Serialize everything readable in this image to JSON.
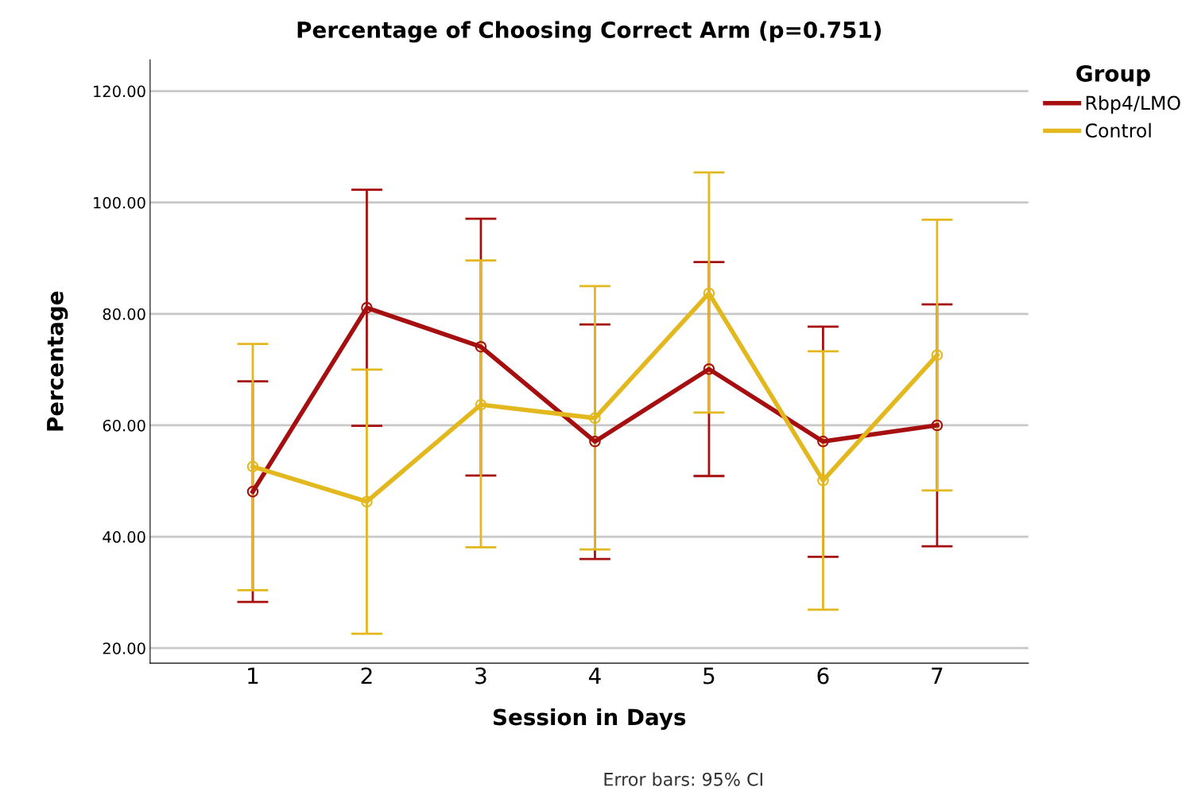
{
  "chart_data": {
    "type": "line",
    "title": "Percentage of Choosing Correct Arm (p=0.751)",
    "xlabel": "Session in Days",
    "ylabel": "Percentage",
    "legend_title": "Group",
    "categories": [
      "1",
      "2",
      "3",
      "4",
      "5",
      "6",
      "7"
    ],
    "series": [
      {
        "name": "Rbp4/LMO",
        "color": "#a50f0f",
        "values": [
          48.1,
          81.1,
          74.1,
          57.1,
          70.1,
          57.1,
          60.0
        ],
        "errors": [
          [
            28.3,
            67.9
          ],
          [
            59.9,
            102.3
          ],
          [
            51.0,
            97.1
          ],
          [
            36.0,
            78.1
          ],
          [
            50.9,
            89.3
          ],
          [
            36.4,
            77.7
          ],
          [
            38.3,
            81.7
          ]
        ]
      },
      {
        "name": "Control",
        "color": "#e3b81e",
        "values": [
          52.6,
          46.3,
          63.7,
          61.3,
          83.7,
          50.1,
          72.6
        ],
        "errors": [
          [
            30.4,
            74.6
          ],
          [
            22.6,
            70.0
          ],
          [
            38.1,
            89.6
          ],
          [
            37.7,
            85.0
          ],
          [
            62.3,
            105.4
          ],
          [
            26.9,
            73.3
          ],
          [
            48.3,
            96.9
          ]
        ]
      }
    ],
    "ylim": [
      17.3,
      125.6
    ],
    "yticks": [
      {
        "value": 20,
        "label": "20.00"
      },
      {
        "value": 40,
        "label": "40.00"
      },
      {
        "value": 60,
        "label": "60.00"
      },
      {
        "value": 80,
        "label": "80.00"
      },
      {
        "value": 100,
        "label": "100.00"
      },
      {
        "value": 120,
        "label": "120.00"
      }
    ],
    "grid": "y",
    "legend": "top right",
    "marker": "circle",
    "line_style": "solid",
    "annotations": [
      "Error bars: 95% CI"
    ]
  }
}
